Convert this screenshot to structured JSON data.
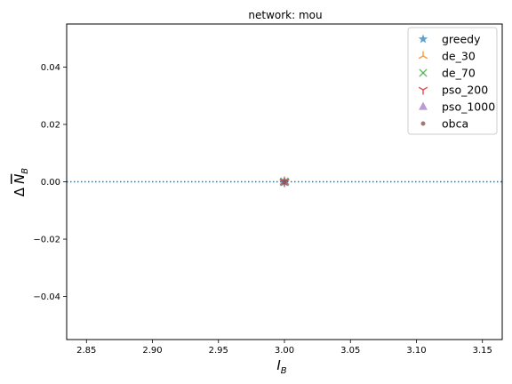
{
  "chart_data": {
    "type": "scatter",
    "title": "network: mou",
    "xlabel_main": "I",
    "xlabel_sub": "B",
    "ylabel_prefix": "Δ",
    "ylabel_main": "N",
    "ylabel_sub": "B",
    "xlim": [
      2.835,
      3.165
    ],
    "ylim": [
      -0.055,
      0.055
    ],
    "xticks": [
      2.85,
      2.9,
      2.95,
      3.0,
      3.05,
      3.1,
      3.15
    ],
    "xtick_labels": [
      "2.85",
      "2.90",
      "2.95",
      "3.00",
      "3.05",
      "3.10",
      "3.15"
    ],
    "yticks": [
      -0.04,
      -0.02,
      0.0,
      0.02,
      0.04
    ],
    "ytick_labels": [
      "−0.04",
      "−0.02",
      "0.00",
      "0.02",
      "0.04"
    ],
    "reference_line": {
      "y": 0.0,
      "style": "dotted",
      "color": "#1f77b4"
    },
    "legend_position": "top-right",
    "series": [
      {
        "name": "greedy",
        "marker": "star",
        "color": "#1f77b4",
        "x": [
          3.0
        ],
        "y": [
          0.0
        ]
      },
      {
        "name": "de_30",
        "marker": "tri_up",
        "color": "#ff7f0e",
        "x": [
          3.0
        ],
        "y": [
          0.0
        ]
      },
      {
        "name": "de_70",
        "marker": "x",
        "color": "#2ca02c",
        "x": [
          3.0
        ],
        "y": [
          0.0
        ]
      },
      {
        "name": "pso_200",
        "marker": "tri_down",
        "color": "#d62728",
        "x": [
          3.0
        ],
        "y": [
          0.0
        ]
      },
      {
        "name": "pso_1000",
        "marker": "triangle_up",
        "color": "#9467bd",
        "x": [
          3.0
        ],
        "y": [
          0.0
        ]
      },
      {
        "name": "obca",
        "marker": "point",
        "color": "#8c564b",
        "x": [
          3.0
        ],
        "y": [
          0.0
        ]
      }
    ]
  }
}
